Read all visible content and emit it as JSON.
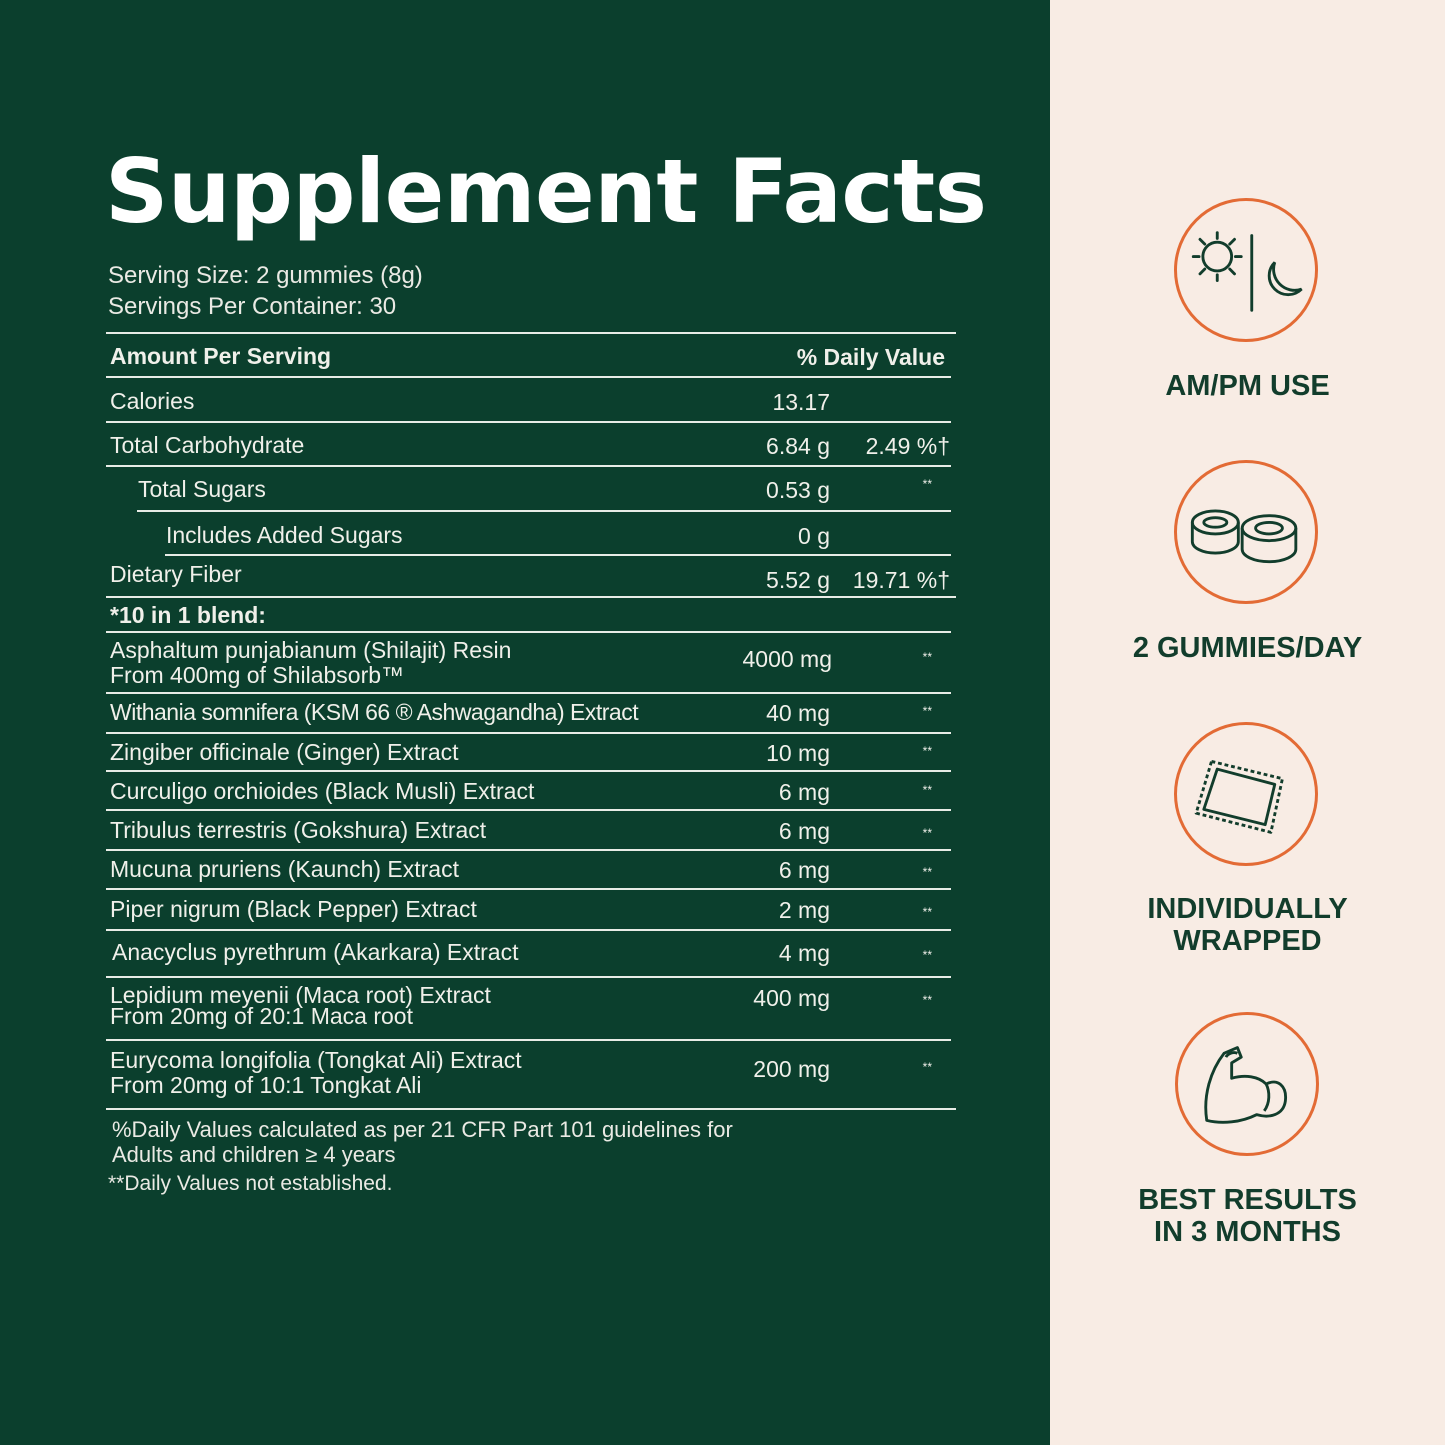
{
  "title": "Supplement Facts",
  "serving_size": "Serving Size: 2 gummies (8g)",
  "servings_per_container": "Servings Per Container: 30",
  "header": {
    "amount": "Amount Per Serving",
    "dv": "% Daily Value"
  },
  "nutrients": [
    {
      "name": "Calories",
      "amount": "13.17",
      "dv": ""
    },
    {
      "name": "Total Carbohydrate",
      "amount": "6.84 g",
      "dv": "2.49 %†"
    },
    {
      "name": "Total Sugars",
      "amount": "0.53 g",
      "dv": "**"
    },
    {
      "name": "Includes Added Sugars",
      "amount": "0 g",
      "dv": ""
    },
    {
      "name": "Dietary Fiber",
      "amount": "5.52 g",
      "dv": "19.71 %†"
    }
  ],
  "blend_title": "*10 in 1 blend:",
  "ingredients": [
    {
      "name": "Asphaltum punjabianum (Shilajit) Resin",
      "sub": "From 400mg of Shilabsorb™",
      "amount": "4000 mg",
      "dv": "**"
    },
    {
      "name": "Withania somnifera (KSM 66 ® Ashwagandha) Extract",
      "amount": "40 mg",
      "dv": "**"
    },
    {
      "name": "Zingiber officinale (Ginger) Extract",
      "amount": "10 mg",
      "dv": "**"
    },
    {
      "name": "Curculigo orchioides (Black Musli) Extract",
      "amount": "6 mg",
      "dv": "**"
    },
    {
      "name": "Tribulus terrestris (Gokshura) Extract",
      "amount": "6 mg",
      "dv": "**"
    },
    {
      "name": "Mucuna pruriens (Kaunch) Extract",
      "amount": "6 mg",
      "dv": "**"
    },
    {
      "name": "Piper nigrum (Black Pepper) Extract",
      "amount": "2 mg",
      "dv": "**"
    },
    {
      "name": "Anacyclus pyrethrum (Akarkara) Extract",
      "amount": "4 mg",
      "dv": "**"
    },
    {
      "name": "Lepidium meyenii (Maca root) Extract",
      "sub": "From 20mg of 20:1 Maca root",
      "amount": "400 mg",
      "dv": "**"
    },
    {
      "name": "Eurycoma longifolia (Tongkat Ali) Extract",
      "sub": "From 20mg of 10:1 Tongkat Ali",
      "amount": "200 mg",
      "dv": "**"
    }
  ],
  "footnote1": "%Daily Values calculated as per 21 CFR Part 101 guidelines for",
  "footnote2": "Adults and children ≥ 4 years",
  "footnote3": "**Daily Values not established.",
  "features": [
    {
      "icon": "sun-moon-icon",
      "label": "AM/PM USE"
    },
    {
      "icon": "gummies-icon",
      "label": "2 GUMMIES/DAY"
    },
    {
      "icon": "wrapper-icon",
      "label1": "INDIVIDUALLY",
      "label2": "WRAPPED"
    },
    {
      "icon": "flexed-arm-icon",
      "label1": "BEST RESULTS",
      "label2": "IN 3 MONTHS"
    }
  ],
  "colors": {
    "background": "#0b3f2d",
    "panel": "#f8ece4",
    "accent": "#e36b35",
    "text_dark": "#123d2c"
  }
}
